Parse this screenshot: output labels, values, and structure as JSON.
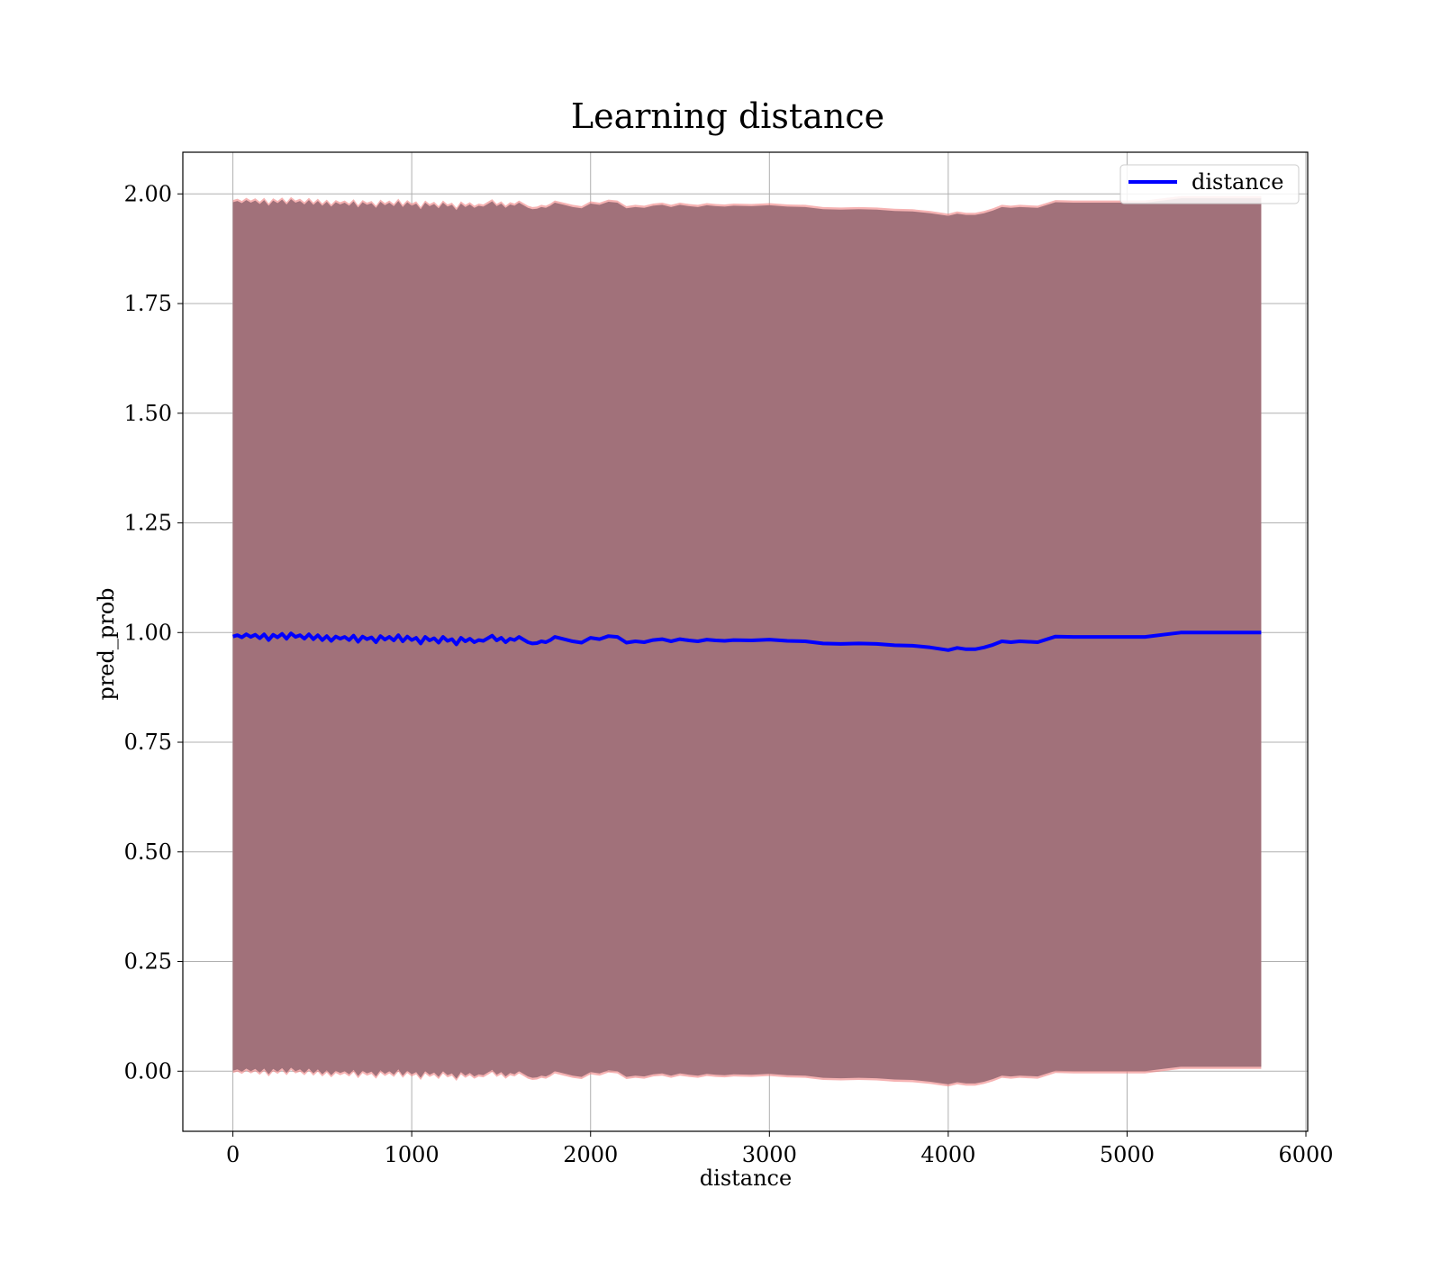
{
  "chart_data": {
    "type": "line",
    "title": "Learning distance",
    "xlabel": "distance",
    "ylabel": "pred_prob",
    "xlim": [
      -280,
      6010
    ],
    "ylim": [
      -0.137,
      2.095
    ],
    "xticks": [
      0,
      1000,
      2000,
      3000,
      4000,
      5000,
      6000
    ],
    "xtick_labels": [
      "0",
      "1000",
      "2000",
      "3000",
      "4000",
      "5000",
      "6000"
    ],
    "yticks": [
      0.0,
      0.25,
      0.5,
      0.75,
      1.0,
      1.25,
      1.5,
      1.75,
      2.0
    ],
    "ytick_labels": [
      "0.00",
      "0.25",
      "0.50",
      "0.75",
      "1.00",
      "1.25",
      "1.50",
      "1.75",
      "2.00"
    ],
    "grid": true,
    "legend": {
      "position": "top-right",
      "entries": [
        "distance"
      ]
    },
    "colors": {
      "line": "#0000ff",
      "band_fill": "#a1717a",
      "band_edge": "#f08080",
      "grid": "#b0b0b0"
    },
    "series": [
      {
        "name": "distance",
        "x": [
          0,
          25,
          50,
          75,
          100,
          125,
          150,
          175,
          200,
          225,
          250,
          275,
          300,
          325,
          350,
          375,
          400,
          425,
          450,
          475,
          500,
          525,
          550,
          575,
          600,
          625,
          650,
          675,
          700,
          725,
          750,
          775,
          800,
          825,
          850,
          875,
          900,
          925,
          950,
          975,
          1000,
          1025,
          1050,
          1075,
          1100,
          1125,
          1150,
          1175,
          1200,
          1225,
          1250,
          1275,
          1300,
          1325,
          1350,
          1375,
          1400,
          1425,
          1450,
          1475,
          1500,
          1525,
          1550,
          1575,
          1600,
          1625,
          1650,
          1675,
          1700,
          1725,
          1750,
          1775,
          1800,
          1850,
          1900,
          1950,
          2000,
          2050,
          2100,
          2150,
          2200,
          2250,
          2300,
          2350,
          2400,
          2450,
          2500,
          2550,
          2600,
          2650,
          2700,
          2750,
          2800,
          2900,
          3000,
          3100,
          3200,
          3300,
          3400,
          3500,
          3600,
          3700,
          3800,
          3900,
          4000,
          4050,
          4100,
          4150,
          4200,
          4250,
          4300,
          4350,
          4400,
          4500,
          4600,
          4700,
          4800,
          4900,
          5000,
          5100,
          5200,
          5300,
          5400,
          5500,
          5600,
          5750
        ],
        "y": [
          0.991,
          0.994,
          0.989,
          0.996,
          0.99,
          0.995,
          0.987,
          0.996,
          0.983,
          0.995,
          0.989,
          0.997,
          0.986,
          0.998,
          0.99,
          0.994,
          0.986,
          0.996,
          0.985,
          0.994,
          0.983,
          0.992,
          0.981,
          0.991,
          0.986,
          0.99,
          0.983,
          0.993,
          0.979,
          0.991,
          0.985,
          0.989,
          0.978,
          0.992,
          0.984,
          0.99,
          0.982,
          0.994,
          0.98,
          0.991,
          0.983,
          0.988,
          0.975,
          0.99,
          0.982,
          0.987,
          0.977,
          0.99,
          0.981,
          0.985,
          0.973,
          0.988,
          0.98,
          0.986,
          0.978,
          0.983,
          0.981,
          0.987,
          0.993,
          0.982,
          0.988,
          0.978,
          0.986,
          0.983,
          0.99,
          0.984,
          0.978,
          0.975,
          0.976,
          0.98,
          0.978,
          0.983,
          0.99,
          0.985,
          0.98,
          0.977,
          0.988,
          0.985,
          0.992,
          0.99,
          0.977,
          0.98,
          0.978,
          0.983,
          0.985,
          0.98,
          0.985,
          0.982,
          0.98,
          0.984,
          0.982,
          0.981,
          0.983,
          0.982,
          0.984,
          0.981,
          0.98,
          0.975,
          0.974,
          0.975,
          0.974,
          0.971,
          0.97,
          0.966,
          0.96,
          0.965,
          0.962,
          0.962,
          0.966,
          0.972,
          0.98,
          0.978,
          0.98,
          0.978,
          0.991,
          0.99,
          0.99,
          0.99,
          0.99,
          0.99,
          0.995,
          1.0,
          1.0,
          1.0,
          1.0,
          1.0
        ]
      }
    ]
  }
}
